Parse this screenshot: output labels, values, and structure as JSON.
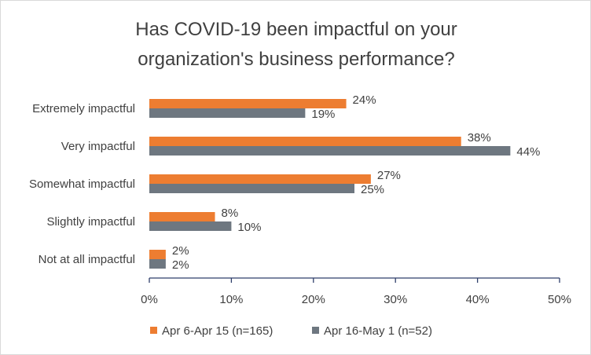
{
  "chart_data": {
    "type": "bar",
    "orientation": "horizontal",
    "title_lines": [
      "Has COVID-19 been impactful on your",
      "organization's business performance?"
    ],
    "categories": [
      "Extremely impactful",
      "Very impactful",
      "Somewhat impactful",
      "Slightly impactful",
      "Not at all impactful"
    ],
    "series": [
      {
        "name": "Apr 6-Apr 15 (n=165)",
        "color": "#ed7d31",
        "values": [
          24,
          38,
          27,
          8,
          2
        ],
        "labels": [
          "24%",
          "38%",
          "27%",
          "8%",
          "2%"
        ]
      },
      {
        "name": "Apr 16-May 1 (n=52)",
        "color": "#6e7780",
        "values": [
          19,
          44,
          25,
          10,
          2
        ],
        "labels": [
          "19%",
          "44%",
          "25%",
          "10%",
          "2%"
        ]
      }
    ],
    "xlim": [
      0,
      50
    ],
    "xticks": [
      "0%",
      "10%",
      "20%",
      "30%",
      "40%",
      "50%"
    ],
    "axis_color": "#2f3f6b",
    "grid": false,
    "legend_position": "bottom"
  }
}
